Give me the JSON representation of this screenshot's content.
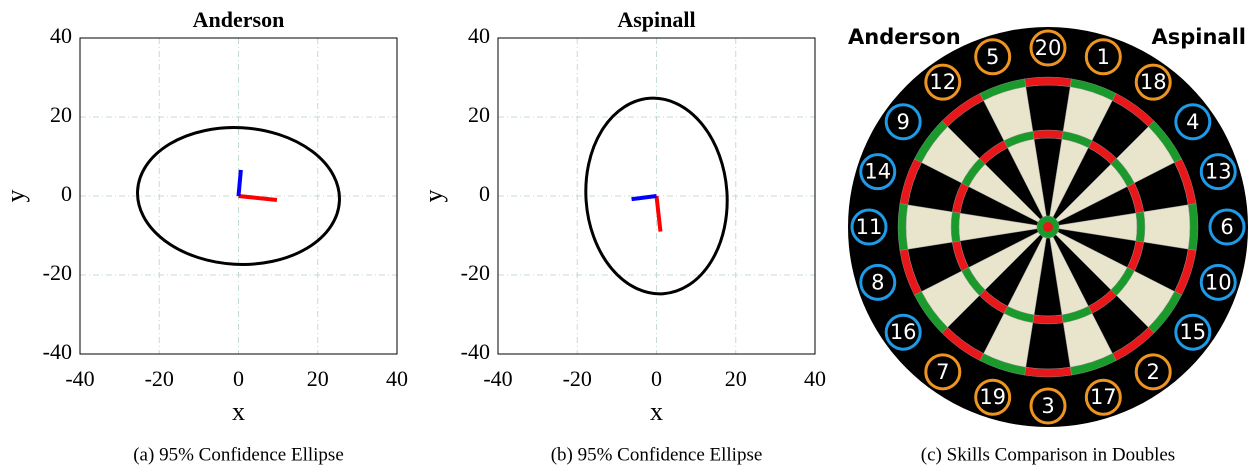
{
  "chart_data": [
    {
      "type": "ellipse",
      "title": "Anderson",
      "x_label": "x",
      "y_label": "y",
      "caption": "(a) 95% Confidence Ellipse",
      "xlim": [
        -40,
        40
      ],
      "ylim": [
        -40,
        40
      ],
      "xticks": [
        -40,
        -20,
        0,
        20,
        40
      ],
      "yticks": [
        -40,
        -20,
        0,
        20,
        40
      ],
      "grid": true,
      "ellipse": {
        "center": [
          0,
          0
        ],
        "semi_axes": [
          25.5,
          17.3
        ],
        "angle": -3,
        "color": "#000000"
      },
      "vectors": [
        {
          "color": "#ff0000",
          "end": [
            9.7,
            -1
          ]
        },
        {
          "color": "#0000ff",
          "end": [
            0.6,
            6.6
          ]
        }
      ]
    },
    {
      "type": "ellipse",
      "title": "Aspinall",
      "x_label": "x",
      "y_label": "y",
      "caption": "(b) 95% Confidence Ellipse",
      "xlim": [
        -40,
        40
      ],
      "ylim": [
        -40,
        40
      ],
      "xticks": [
        -40,
        -20,
        0,
        20,
        40
      ],
      "yticks": [
        -40,
        -20,
        0,
        20,
        40
      ],
      "grid": true,
      "ellipse": {
        "center": [
          0,
          0
        ],
        "semi_axes": [
          17.8,
          24.8
        ],
        "angle": 4,
        "color": "#000000"
      },
      "vectors": [
        {
          "color": "#ff0000",
          "end": [
            1,
            -9
          ]
        },
        {
          "color": "#0000ff",
          "end": [
            -6.3,
            -0.8
          ]
        }
      ]
    }
  ],
  "dartboard": {
    "caption": "(c) Skills Comparison in Doubles",
    "legend": [
      {
        "name": "Anderson",
        "color": "#ee9420"
      },
      {
        "name": "Aspinall",
        "color": "#1e9ae6"
      }
    ],
    "numbers": [
      {
        "label": "20",
        "color": "#ee9420"
      },
      {
        "label": "1",
        "color": "#ee9420"
      },
      {
        "label": "18",
        "color": "#ee9420"
      },
      {
        "label": "4",
        "color": "#1e9ae6"
      },
      {
        "label": "13",
        "color": "#1e9ae6"
      },
      {
        "label": "6",
        "color": "#1e9ae6"
      },
      {
        "label": "10",
        "color": "#1e9ae6"
      },
      {
        "label": "15",
        "color": "#1e9ae6"
      },
      {
        "label": "2",
        "color": "#ee9420"
      },
      {
        "label": "17",
        "color": "#ee9420"
      },
      {
        "label": "3",
        "color": "#ee9420"
      },
      {
        "label": "19",
        "color": "#ee9420"
      },
      {
        "label": "7",
        "color": "#ee9420"
      },
      {
        "label": "16",
        "color": "#1e9ae6"
      },
      {
        "label": "8",
        "color": "#1e9ae6"
      },
      {
        "label": "11",
        "color": "#1e9ae6"
      },
      {
        "label": "14",
        "color": "#1e9ae6"
      },
      {
        "label": "9",
        "color": "#1e9ae6"
      },
      {
        "label": "12",
        "color": "#ee9420"
      },
      {
        "label": "5",
        "color": "#ee9420"
      }
    ]
  }
}
